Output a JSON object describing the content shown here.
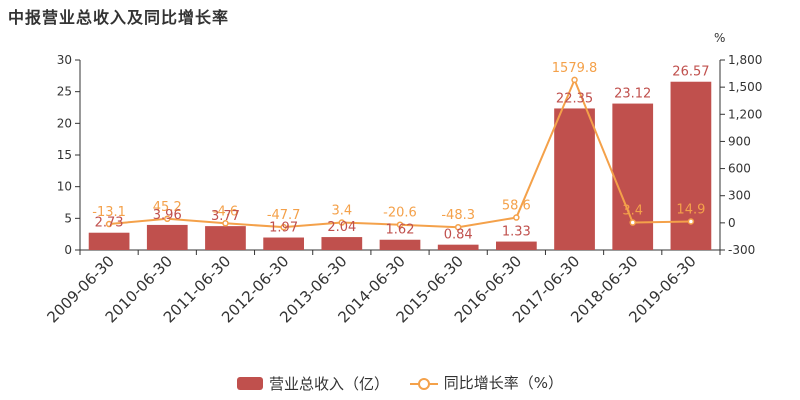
{
  "title": "中报营业总收入及同比增长率",
  "right_axis_unit": "%",
  "colors": {
    "bar": "#c0504d",
    "line": "#f4a14a",
    "axis": "#333333"
  },
  "legend": {
    "bar_label": "营业总收入（亿）",
    "line_label": "同比增长率（%）"
  },
  "chart_data": {
    "type": "bar",
    "categories": [
      "2009-06-30",
      "2010-06-30",
      "2011-06-30",
      "2012-06-30",
      "2013-06-30",
      "2014-06-30",
      "2015-06-30",
      "2016-06-30",
      "2017-06-30",
      "2018-06-30",
      "2019-06-30"
    ],
    "series": [
      {
        "name": "营业总收入（亿）",
        "type": "bar",
        "axis": "left",
        "values": [
          2.73,
          3.96,
          3.77,
          1.97,
          2.04,
          1.62,
          0.84,
          1.33,
          22.35,
          23.12,
          26.57
        ]
      },
      {
        "name": "同比增长率（%）",
        "type": "line",
        "axis": "right",
        "values": [
          -13.1,
          45.2,
          -4.6,
          -47.7,
          3.4,
          -20.6,
          -48.3,
          58.6,
          1579.8,
          3.4,
          14.9
        ]
      }
    ],
    "left_axis": {
      "min": 0,
      "max": 30,
      "ticks": [
        0,
        5,
        10,
        15,
        20,
        25,
        30
      ]
    },
    "right_axis": {
      "min": -300,
      "max": 1800,
      "ticks": [
        -300,
        0,
        300,
        600,
        900,
        1200,
        1500,
        1800
      ],
      "tick_labels": [
        "-300",
        "0",
        "300",
        "600",
        "900",
        "1,200",
        "1,500",
        "1,800"
      ]
    },
    "grid": false,
    "legend_position": "bottom"
  }
}
